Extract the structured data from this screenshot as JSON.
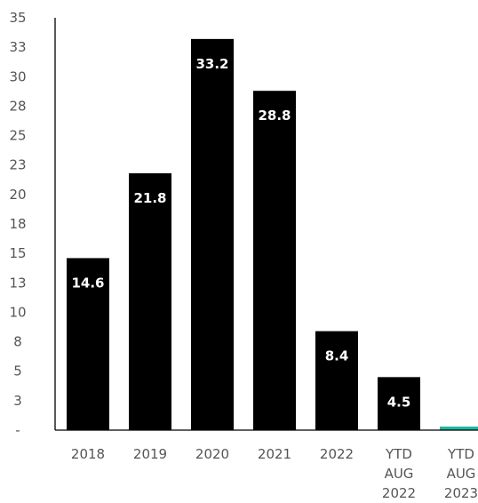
{
  "chart_data": {
    "type": "bar",
    "categories": [
      "2018",
      "2019",
      "2020",
      "2021",
      "2022",
      "YTD\nAUG\n2022",
      "YTD\nAUG\n2023"
    ],
    "values": [
      14.6,
      21.8,
      33.2,
      28.8,
      8.4,
      4.5,
      0.3
    ],
    "data_labels": [
      "14.6",
      "21.8",
      "33.2",
      "28.8",
      "8.4",
      "4.5",
      ""
    ],
    "bar_colors": [
      "#000000",
      "#000000",
      "#000000",
      "#000000",
      "#000000",
      "#000000",
      "#1fb5a0"
    ],
    "y_tick_labels": [
      "-",
      "3",
      "5",
      "8",
      "10",
      "13",
      "15",
      "18",
      "20",
      "23",
      "25",
      "28",
      "30",
      "33",
      "35"
    ],
    "ylim": [
      0,
      35
    ],
    "title": "",
    "xlabel": "",
    "ylabel": "",
    "grid": false,
    "legend": "none"
  }
}
